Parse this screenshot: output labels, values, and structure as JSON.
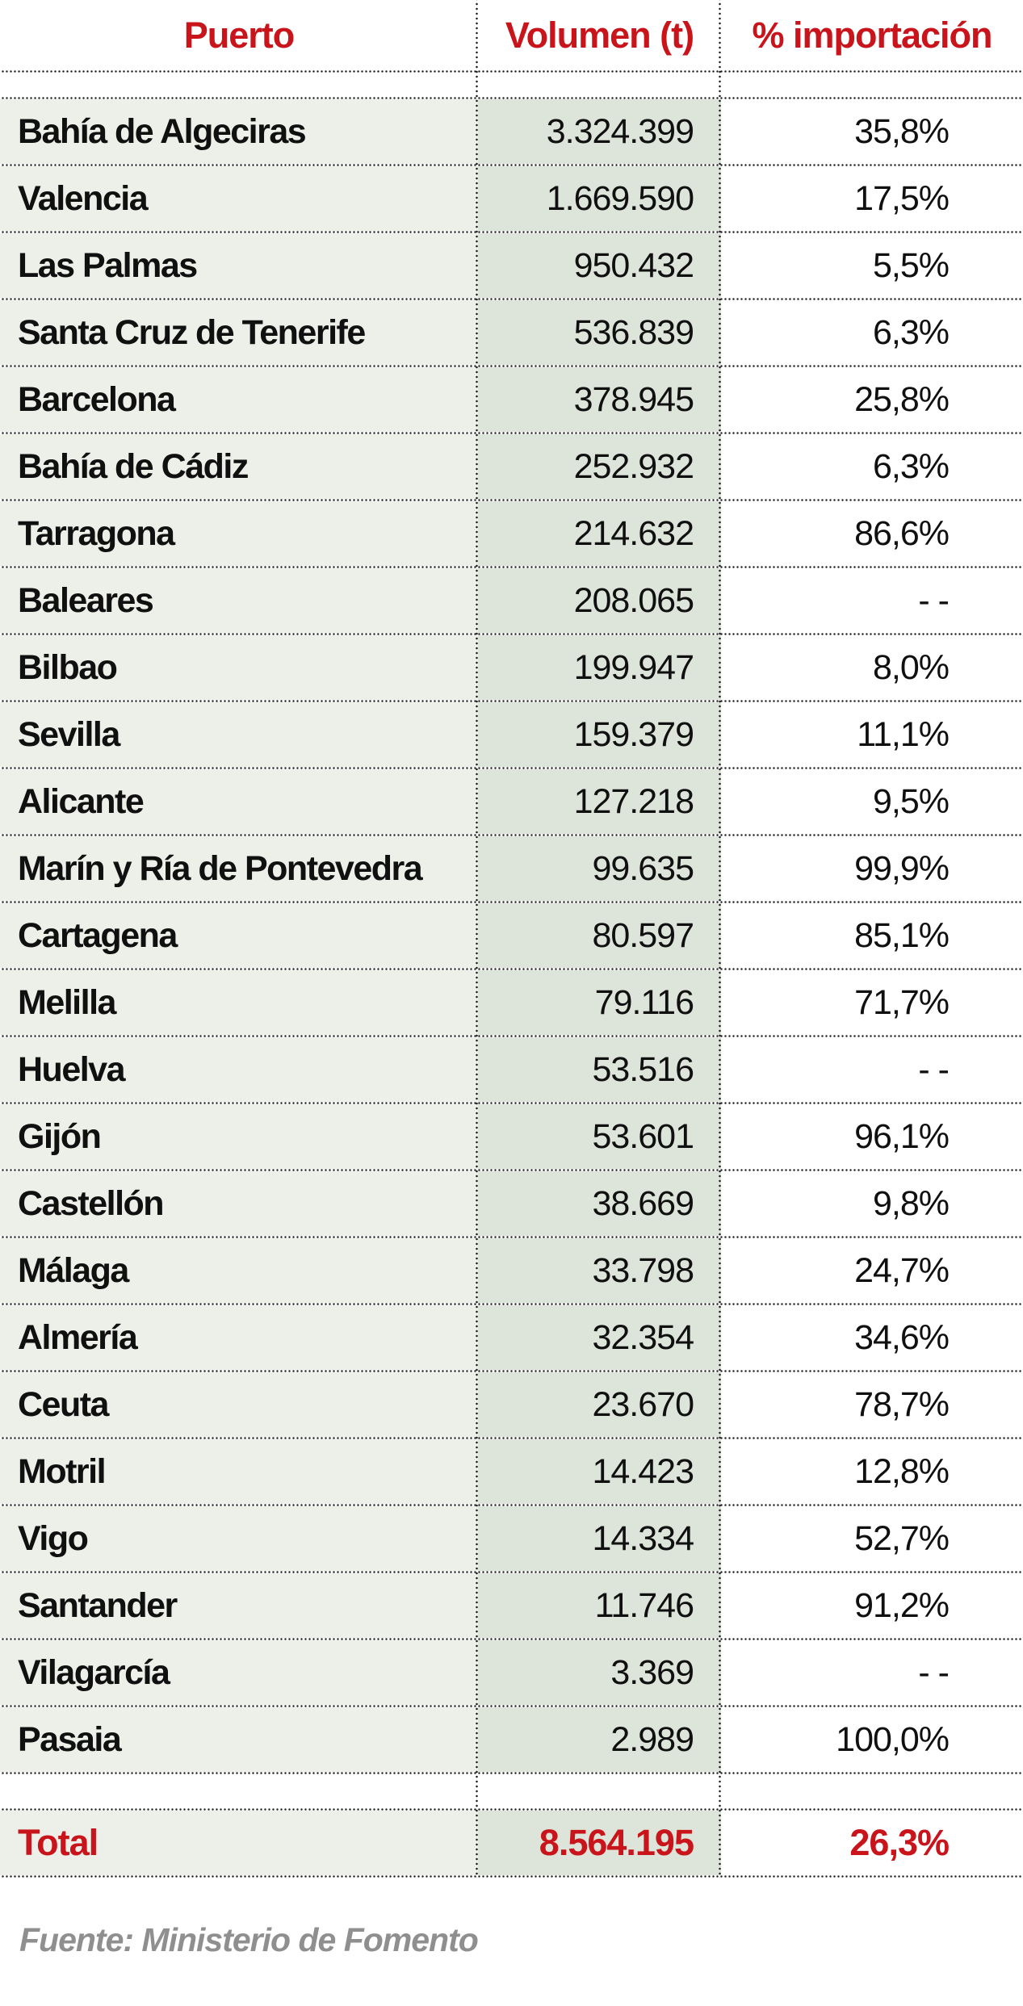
{
  "accent_color": "#c9141b",
  "col1_bg": "#edf0e9",
  "col2_bg": "#dde4d9",
  "source_text": "Fuente: Ministerio de Fomento",
  "chart_data": {
    "type": "table",
    "columns": [
      "Puerto",
      "Volumen (t)",
      "% importación"
    ],
    "rows": [
      [
        "Bahía de Algeciras",
        "3.324.399",
        "35,8%"
      ],
      [
        "Valencia",
        "1.669.590",
        "17,5%"
      ],
      [
        "Las Palmas",
        "950.432",
        "5,5%"
      ],
      [
        "Santa Cruz de Tenerife",
        "536.839",
        "6,3%"
      ],
      [
        "Barcelona",
        "378.945",
        "25,8%"
      ],
      [
        "Bahía de Cádiz",
        "252.932",
        "6,3%"
      ],
      [
        "Tarragona",
        "214.632",
        "86,6%"
      ],
      [
        "Baleares",
        "208.065",
        "- -"
      ],
      [
        "Bilbao",
        "199.947",
        "8,0%"
      ],
      [
        "Sevilla",
        "159.379",
        "11,1%"
      ],
      [
        "Alicante",
        "127.218",
        "9,5%"
      ],
      [
        "Marín y Ría de Pontevedra",
        "99.635",
        "99,9%"
      ],
      [
        "Cartagena",
        "80.597",
        "85,1%"
      ],
      [
        "Melilla",
        "79.116",
        "71,7%"
      ],
      [
        "Huelva",
        "53.516",
        "- -"
      ],
      [
        "Gijón",
        "53.601",
        "96,1%"
      ],
      [
        "Castellón",
        "38.669",
        "9,8%"
      ],
      [
        "Málaga",
        "33.798",
        "24,7%"
      ],
      [
        "Almería",
        "32.354",
        "34,6%"
      ],
      [
        "Ceuta",
        "23.670",
        "78,7%"
      ],
      [
        "Motril",
        "14.423",
        "12,8%"
      ],
      [
        "Vigo",
        "14.334",
        "52,7%"
      ],
      [
        "Santander",
        "11.746",
        "91,2%"
      ],
      [
        "Vilagarcía",
        "3.369",
        "- -"
      ],
      [
        "Pasaia",
        "2.989",
        "100,0%"
      ]
    ],
    "total_row": [
      "Total",
      "8.564.195",
      "26,3%"
    ],
    "title": "",
    "source": "Fuente: Ministerio de Fomento",
    "legend": false,
    "grid": "dotted"
  }
}
